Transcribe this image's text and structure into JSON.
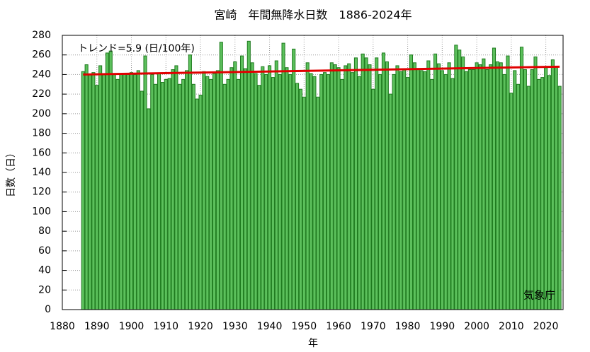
{
  "chart_data": {
    "type": "bar",
    "title": "宮崎　年間無降水日数　1886-2024年",
    "x_label": "年",
    "y_label": "日数（日）",
    "annotations": [
      "トレンド=5.9 (日/100年)",
      "気象庁"
    ],
    "x": [
      1886,
      1887,
      1888,
      1889,
      1890,
      1891,
      1892,
      1893,
      1894,
      1895,
      1896,
      1897,
      1898,
      1899,
      1900,
      1901,
      1902,
      1903,
      1904,
      1905,
      1906,
      1907,
      1908,
      1909,
      1910,
      1911,
      1912,
      1913,
      1914,
      1915,
      1916,
      1917,
      1918,
      1919,
      1920,
      1921,
      1922,
      1923,
      1924,
      1925,
      1926,
      1927,
      1928,
      1929,
      1930,
      1931,
      1932,
      1933,
      1934,
      1935,
      1936,
      1937,
      1938,
      1939,
      1940,
      1941,
      1942,
      1943,
      1944,
      1945,
      1946,
      1947,
      1948,
      1949,
      1950,
      1951,
      1952,
      1953,
      1954,
      1955,
      1956,
      1957,
      1958,
      1959,
      1960,
      1961,
      1962,
      1963,
      1964,
      1965,
      1966,
      1967,
      1968,
      1969,
      1970,
      1971,
      1972,
      1973,
      1974,
      1975,
      1976,
      1977,
      1978,
      1979,
      1980,
      1981,
      1982,
      1983,
      1984,
      1985,
      1986,
      1987,
      1988,
      1989,
      1990,
      1991,
      1992,
      1993,
      1994,
      1995,
      1996,
      1997,
      1998,
      1999,
      2000,
      2001,
      2002,
      2003,
      2004,
      2005,
      2006,
      2007,
      2008,
      2009,
      2010,
      2011,
      2012,
      2013,
      2014,
      2015,
      2016,
      2017,
      2018,
      2019,
      2020,
      2021,
      2022,
      2023,
      2024
    ],
    "values": [
      243,
      250,
      240,
      242,
      229,
      249,
      240,
      262,
      264,
      240,
      235,
      240,
      241,
      240,
      242,
      240,
      244,
      223,
      259,
      205,
      240,
      230,
      241,
      232,
      235,
      236,
      245,
      249,
      230,
      235,
      244,
      260,
      230,
      215,
      219,
      243,
      238,
      235,
      241,
      244,
      273,
      230,
      235,
      247,
      253,
      235,
      259,
      246,
      274,
      252,
      241,
      229,
      248,
      240,
      249,
      237,
      254,
      240,
      272,
      247,
      240,
      266,
      231,
      225,
      217,
      252,
      241,
      238,
      217,
      240,
      242,
      240,
      252,
      250,
      247,
      235,
      249,
      251,
      242,
      257,
      238,
      261,
      257,
      250,
      225,
      257,
      240,
      262,
      253,
      220,
      240,
      249,
      243,
      246,
      237,
      260,
      252,
      246,
      244,
      243,
      254,
      235,
      261,
      251,
      244,
      240,
      252,
      236,
      270,
      265,
      258,
      243,
      245,
      245,
      252,
      250,
      256,
      245,
      250,
      267,
      253,
      252,
      240,
      259,
      221,
      244,
      230,
      268,
      245,
      228,
      245,
      258,
      235,
      237,
      247,
      239,
      255,
      248,
      228
    ],
    "color": "#5cc05c",
    "edge_color": "#1e7a1e",
    "trend": {
      "x": [
        1886,
        2024
      ],
      "values": [
        240,
        248
      ],
      "color": "#e00000"
    },
    "xlim": [
      1880,
      2025
    ],
    "ylim": [
      0,
      280
    ],
    "xticks": [
      1880,
      1890,
      1900,
      1910,
      1920,
      1930,
      1940,
      1950,
      1960,
      1970,
      1980,
      1990,
      2000,
      2010,
      2020
    ],
    "yticks": [
      0,
      20,
      40,
      60,
      80,
      100,
      120,
      140,
      160,
      180,
      200,
      220,
      240,
      260,
      280
    ],
    "grid": true
  }
}
